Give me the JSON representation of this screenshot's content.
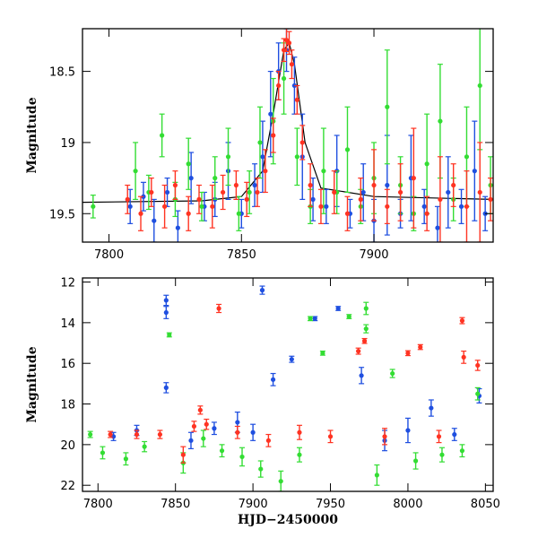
{
  "chart_data": [
    {
      "type": "scatter",
      "title": "",
      "xlabel": "",
      "ylabel": "Magnitude",
      "xlim": [
        7790,
        7945
      ],
      "ylim": [
        19.7,
        18.2
      ],
      "y_inverted": true,
      "grid": false,
      "legend": "none",
      "x_ticks": [
        7800,
        7850,
        7900
      ],
      "y_ticks": [
        18.5,
        19,
        19.5
      ],
      "x_tick_labels": [
        "7800",
        "7850",
        "7900"
      ],
      "y_tick_labels": [
        "18.5",
        "19",
        "19.5"
      ],
      "baseline_model": {
        "color": "#000000",
        "x": [
          7790,
          7835,
          7850,
          7858,
          7862,
          7866,
          7868,
          7870,
          7874,
          7880,
          7900,
          7945
        ],
        "y": [
          19.42,
          19.41,
          19.38,
          19.2,
          18.8,
          18.35,
          18.3,
          18.45,
          19.0,
          19.32,
          19.38,
          19.4
        ]
      },
      "series": [
        {
          "color": "#1f4fe0",
          "x": [
            7808,
            7813,
            7817,
            7822,
            7826,
            7831,
            7836,
            7840,
            7845,
            7850,
            7855,
            7858,
            7861,
            7864,
            7867,
            7870,
            7873,
            7877,
            7882,
            7886,
            7891,
            7896,
            7900,
            7905,
            7910,
            7914,
            7919,
            7924,
            7928,
            7933,
            7938,
            7942
          ],
          "y": [
            19.45,
            19.38,
            19.55,
            19.35,
            19.6,
            19.25,
            19.45,
            19.4,
            19.2,
            19.5,
            19.3,
            19.1,
            18.8,
            18.5,
            18.35,
            18.6,
            19.1,
            19.4,
            19.45,
            19.2,
            19.5,
            19.35,
            19.55,
            19.3,
            19.5,
            19.25,
            19.45,
            19.6,
            19.35,
            19.45,
            19.2,
            19.5
          ],
          "err": [
            0.12,
            0.1,
            0.15,
            0.1,
            0.12,
            0.18,
            0.1,
            0.12,
            0.2,
            0.1,
            0.15,
            0.25,
            0.3,
            0.2,
            0.15,
            0.2,
            0.3,
            0.15,
            0.12,
            0.25,
            0.1,
            0.2,
            0.15,
            0.35,
            0.1,
            0.3,
            0.12,
            0.15,
            0.25,
            0.12,
            0.35,
            0.12
          ]
        },
        {
          "color": "#33dd33",
          "x": [
            7794,
            7810,
            7815,
            7820,
            7825,
            7830,
            7835,
            7840,
            7845,
            7849,
            7853,
            7857,
            7862,
            7866,
            7871,
            7876,
            7881,
            7886,
            7890,
            7895,
            7900,
            7905,
            7910,
            7915,
            7920,
            7925,
            7930,
            7935,
            7940,
            7944
          ],
          "y": [
            19.45,
            19.2,
            19.35,
            18.95,
            19.4,
            19.15,
            19.45,
            19.25,
            19.1,
            19.5,
            19.35,
            19.0,
            18.85,
            18.55,
            19.1,
            19.45,
            19.2,
            19.35,
            19.05,
            19.45,
            19.25,
            18.75,
            19.3,
            19.5,
            19.15,
            18.85,
            19.4,
            19.1,
            18.6,
            19.3
          ],
          "err": [
            0.08,
            0.2,
            0.12,
            0.15,
            0.12,
            0.18,
            0.1,
            0.15,
            0.2,
            0.12,
            0.15,
            0.25,
            0.3,
            0.25,
            0.2,
            0.12,
            0.3,
            0.15,
            0.3,
            0.12,
            0.25,
            0.4,
            0.2,
            0.12,
            0.35,
            0.4,
            0.15,
            0.35,
            0.45,
            0.2
          ]
        },
        {
          "color": "#ff3322",
          "x": [
            7807,
            7812,
            7816,
            7821,
            7825,
            7830,
            7834,
            7839,
            7843,
            7848,
            7852,
            7856,
            7859,
            7862,
            7864,
            7866,
            7867,
            7868,
            7869,
            7871,
            7873,
            7876,
            7880,
            7885,
            7890,
            7895,
            7900,
            7905,
            7910,
            7915,
            7920,
            7925,
            7930,
            7935,
            7940,
            7944
          ],
          "y": [
            19.4,
            19.5,
            19.35,
            19.45,
            19.3,
            19.5,
            19.4,
            19.45,
            19.35,
            19.3,
            19.4,
            19.35,
            19.2,
            18.95,
            18.6,
            18.35,
            18.28,
            18.3,
            18.45,
            18.7,
            19.0,
            19.3,
            19.45,
            19.35,
            19.5,
            19.4,
            19.3,
            19.45,
            19.35,
            19.25,
            19.5,
            19.4,
            19.3,
            19.45,
            19.35,
            19.4
          ],
          "err": [
            0.1,
            0.12,
            0.1,
            0.15,
            0.1,
            0.12,
            0.1,
            0.15,
            0.12,
            0.1,
            0.12,
            0.1,
            0.15,
            0.12,
            0.1,
            0.08,
            0.08,
            0.08,
            0.1,
            0.1,
            0.12,
            0.15,
            0.12,
            0.15,
            0.12,
            0.15,
            0.25,
            0.12,
            0.2,
            0.35,
            0.12,
            0.3,
            0.15,
            0.25,
            0.35,
            0.15
          ]
        }
      ]
    },
    {
      "type": "scatter",
      "title": "",
      "xlabel": "HJD−2450000",
      "ylabel": "Magnitude",
      "xlim": [
        7790,
        8055
      ],
      "ylim": [
        22.3,
        11.8
      ],
      "y_inverted": true,
      "grid": false,
      "legend": "none",
      "x_ticks": [
        7800,
        7850,
        7900,
        7950,
        8000,
        8050
      ],
      "y_ticks": [
        12,
        14,
        16,
        18,
        20,
        22
      ],
      "x_tick_labels": [
        "7800",
        "7850",
        "7900",
        "7950",
        "8000",
        "8050"
      ],
      "y_tick_labels": [
        "12",
        "14",
        "16",
        "18",
        "20",
        "22"
      ],
      "series": [
        {
          "color": "#1f4fe0",
          "x": [
            7810,
            7825,
            7844,
            7844,
            7844,
            7860,
            7875,
            7890,
            7900,
            7906,
            7913,
            7925,
            7940,
            7955,
            7970,
            7985,
            8000,
            8015,
            8030,
            8046
          ],
          "y": [
            19.6,
            19.3,
            12.9,
            13.5,
            17.2,
            19.8,
            19.2,
            18.9,
            19.4,
            12.4,
            16.8,
            15.8,
            13.8,
            13.3,
            16.6,
            19.8,
            19.3,
            18.2,
            19.5,
            17.6
          ],
          "err": [
            0.2,
            0.25,
            0.25,
            0.3,
            0.25,
            0.4,
            0.3,
            0.5,
            0.4,
            0.2,
            0.3,
            0.15,
            0.1,
            0.1,
            0.4,
            0.5,
            0.6,
            0.4,
            0.3,
            0.35
          ]
        },
        {
          "color": "#33dd33",
          "x": [
            7795,
            7803,
            7818,
            7830,
            7846,
            7855,
            7868,
            7880,
            7893,
            7905,
            7918,
            7930,
            7937,
            7945,
            7962,
            7973,
            7973,
            7980,
            7990,
            8005,
            8022,
            8035,
            8045
          ],
          "y": [
            19.5,
            20.4,
            20.7,
            20.1,
            14.6,
            20.9,
            19.7,
            20.3,
            20.6,
            21.2,
            21.8,
            20.5,
            13.8,
            15.5,
            13.7,
            13.3,
            14.3,
            21.5,
            16.5,
            20.8,
            20.5,
            20.3,
            17.5
          ],
          "err": [
            0.15,
            0.3,
            0.3,
            0.25,
            0.1,
            0.5,
            0.4,
            0.3,
            0.45,
            0.4,
            0.5,
            0.35,
            0.1,
            0.1,
            0.1,
            0.3,
            0.2,
            0.5,
            0.2,
            0.4,
            0.35,
            0.3,
            0.3
          ]
        },
        {
          "color": "#ff3322",
          "x": [
            7808,
            7825,
            7840,
            7855,
            7862,
            7866,
            7870,
            7878,
            7890,
            7910,
            7930,
            7950,
            7968,
            7972,
            7985,
            8000,
            8008,
            8020,
            8035,
            8036,
            8045
          ],
          "y": [
            19.5,
            19.5,
            19.5,
            20.5,
            19.1,
            18.3,
            19.0,
            13.3,
            19.4,
            19.8,
            19.4,
            19.6,
            15.4,
            14.9,
            19.6,
            15.5,
            15.2,
            19.6,
            13.9,
            15.7,
            16.1
          ],
          "err": [
            0.15,
            0.2,
            0.2,
            0.4,
            0.25,
            0.2,
            0.25,
            0.2,
            0.3,
            0.3,
            0.35,
            0.3,
            0.15,
            0.12,
            0.4,
            0.12,
            0.12,
            0.3,
            0.15,
            0.3,
            0.25
          ]
        }
      ]
    }
  ]
}
